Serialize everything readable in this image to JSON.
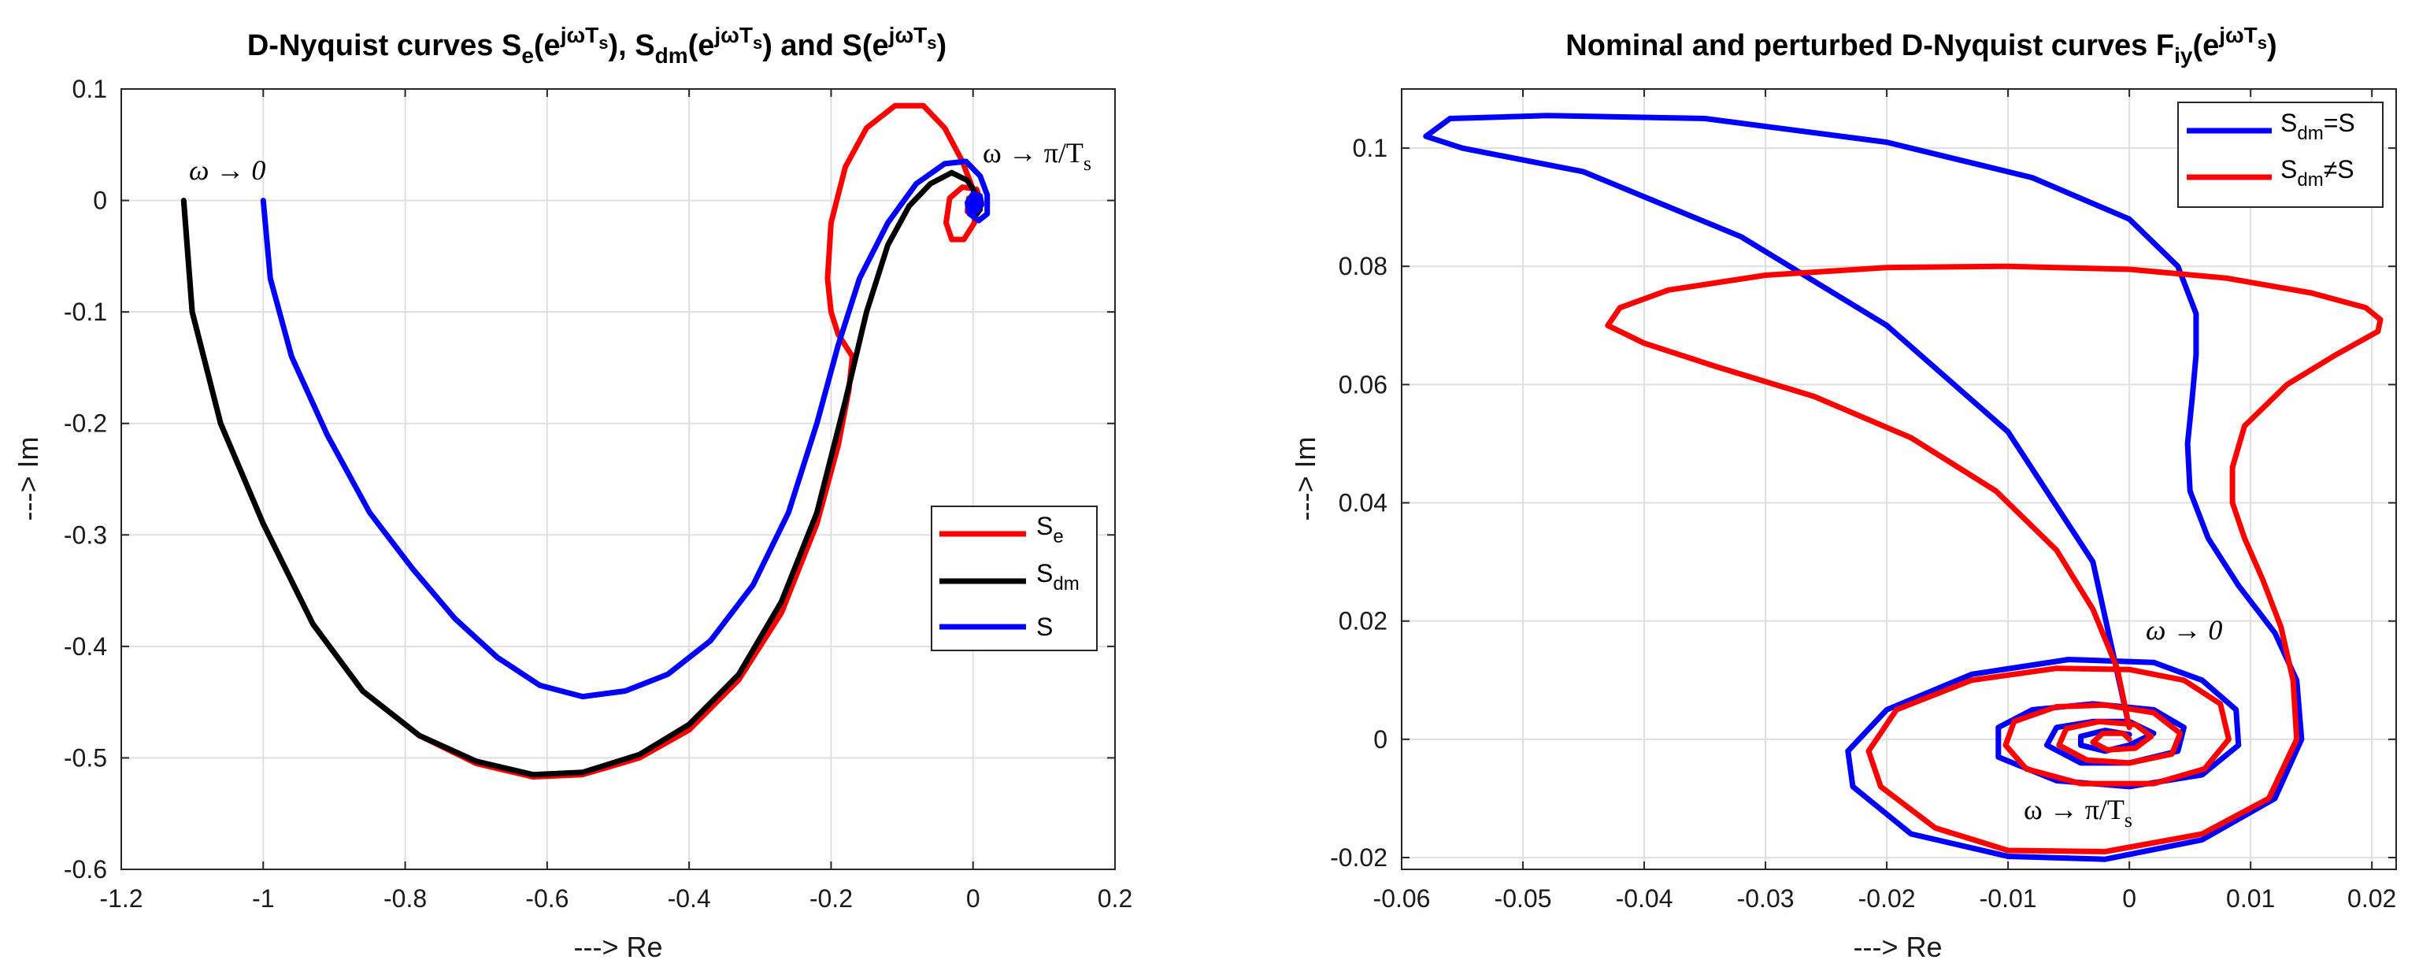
{
  "chart_data": [
    {
      "type": "line",
      "title": {
        "a": "D-Nyquist curves S",
        "s1": "e",
        "b": "(e",
        "sup": "jωT",
        "s2": "s",
        "c": "), S",
        "s3": "dm",
        "d": "(e",
        "e": ") and S(e",
        "f": ")"
      },
      "xlabel": "---> Re",
      "ylabel": "---> Im",
      "xlim": [
        -1.2,
        0.2
      ],
      "ylim": [
        -0.6,
        0.1
      ],
      "xticks": [
        "-1.2",
        "-1",
        "-0.8",
        "-0.6",
        "-0.4",
        "-0.2",
        "0",
        "0.2"
      ],
      "yticks": [
        "-0.6",
        "-0.5",
        "-0.4",
        "-0.3",
        "-0.2",
        "-0.1",
        "0",
        "0.1"
      ],
      "legend_position": "right-middle",
      "grid": true,
      "annotations": [
        {
          "text": "ω → 0"
        },
        {
          "text": "ω → π/T",
          "sub": "s"
        }
      ],
      "series": [
        {
          "name": "S",
          "sub": "e",
          "color": "#ff0000",
          "points": [
            [
              -1.112,
              0
            ],
            [
              -1.1,
              -0.1
            ],
            [
              -1.06,
              -0.2
            ],
            [
              -1.0,
              -0.29
            ],
            [
              -0.93,
              -0.38
            ],
            [
              -0.86,
              -0.44
            ],
            [
              -0.78,
              -0.48
            ],
            [
              -0.7,
              -0.505
            ],
            [
              -0.62,
              -0.517
            ],
            [
              -0.55,
              -0.515
            ],
            [
              -0.47,
              -0.5
            ],
            [
              -0.4,
              -0.475
            ],
            [
              -0.33,
              -0.43
            ],
            [
              -0.27,
              -0.37
            ],
            [
              -0.22,
              -0.29
            ],
            [
              -0.19,
              -0.22
            ],
            [
              -0.175,
              -0.17
            ],
            [
              -0.17,
              -0.14
            ],
            [
              -0.19,
              -0.12
            ],
            [
              -0.2,
              -0.1
            ],
            [
              -0.205,
              -0.07
            ],
            [
              -0.2,
              -0.02
            ],
            [
              -0.18,
              0.03
            ],
            [
              -0.15,
              0.065
            ],
            [
              -0.11,
              0.085
            ],
            [
              -0.07,
              0.085
            ],
            [
              -0.04,
              0.065
            ],
            [
              -0.015,
              0.035
            ],
            [
              0.003,
              0.005
            ],
            [
              0.002,
              -0.02
            ],
            [
              -0.013,
              -0.035
            ],
            [
              -0.03,
              -0.035
            ],
            [
              -0.038,
              -0.02
            ],
            [
              -0.033,
              0.002
            ],
            [
              -0.015,
              0.012
            ],
            [
              0.005,
              0.01
            ],
            [
              0.012,
              -0.002
            ],
            [
              0.004,
              -0.012
            ],
            [
              -0.008,
              -0.01
            ],
            [
              -0.006,
              0.002
            ],
            [
              0.004,
              0.004
            ]
          ]
        },
        {
          "name": "S",
          "sub": "dm",
          "color": "#000000",
          "points": [
            [
              -1.112,
              0
            ],
            [
              -1.1,
              -0.1
            ],
            [
              -1.06,
              -0.2
            ],
            [
              -1.0,
              -0.29
            ],
            [
              -0.93,
              -0.38
            ],
            [
              -0.86,
              -0.44
            ],
            [
              -0.78,
              -0.48
            ],
            [
              -0.7,
              -0.503
            ],
            [
              -0.62,
              -0.515
            ],
            [
              -0.55,
              -0.513
            ],
            [
              -0.47,
              -0.497
            ],
            [
              -0.4,
              -0.47
            ],
            [
              -0.33,
              -0.425
            ],
            [
              -0.27,
              -0.36
            ],
            [
              -0.22,
              -0.28
            ],
            [
              -0.18,
              -0.18
            ],
            [
              -0.15,
              -0.1
            ],
            [
              -0.12,
              -0.04
            ],
            [
              -0.09,
              -0.005
            ],
            [
              -0.06,
              0.015
            ],
            [
              -0.03,
              0.025
            ],
            [
              -0.008,
              0.018
            ],
            [
              0.005,
              0.005
            ],
            [
              0.01,
              -0.008
            ],
            [
              0.002,
              -0.015
            ],
            [
              -0.006,
              -0.008
            ],
            [
              -0.002,
              0.002
            ],
            [
              0.003,
              0.0
            ]
          ]
        },
        {
          "name": "S",
          "sub": "",
          "color": "#0000ff",
          "points": [
            [
              -1.0,
              0
            ],
            [
              -0.99,
              -0.07
            ],
            [
              -0.96,
              -0.14
            ],
            [
              -0.91,
              -0.21
            ],
            [
              -0.85,
              -0.28
            ],
            [
              -0.79,
              -0.33
            ],
            [
              -0.73,
              -0.375
            ],
            [
              -0.67,
              -0.41
            ],
            [
              -0.61,
              -0.435
            ],
            [
              -0.55,
              -0.445
            ],
            [
              -0.49,
              -0.44
            ],
            [
              -0.43,
              -0.425
            ],
            [
              -0.37,
              -0.395
            ],
            [
              -0.31,
              -0.345
            ],
            [
              -0.26,
              -0.28
            ],
            [
              -0.22,
              -0.2
            ],
            [
              -0.19,
              -0.13
            ],
            [
              -0.16,
              -0.07
            ],
            [
              -0.12,
              -0.02
            ],
            [
              -0.08,
              0.015
            ],
            [
              -0.04,
              0.033
            ],
            [
              -0.01,
              0.035
            ],
            [
              0.01,
              0.022
            ],
            [
              0.02,
              0.005
            ],
            [
              0.02,
              -0.012
            ],
            [
              0.008,
              -0.018
            ],
            [
              -0.005,
              -0.012
            ],
            [
              -0.008,
              -0.002
            ],
            [
              0.0,
              0.006
            ],
            [
              0.01,
              0.004
            ],
            [
              0.012,
              -0.004
            ],
            [
              0.004,
              -0.01
            ],
            [
              -0.004,
              -0.006
            ],
            [
              -0.002,
              0.002
            ],
            [
              0.006,
              0.002
            ],
            [
              0.008,
              -0.004
            ],
            [
              0.002,
              -0.006
            ],
            [
              0.0,
              -0.002
            ],
            [
              0.004,
              0.0
            ]
          ]
        }
      ]
    },
    {
      "type": "line",
      "title": {
        "a": "Nominal and perturbed D-Nyquist curves F",
        "s1": "iy",
        "b": "(e",
        "sup": "jωT",
        "s2": "s",
        "c": ")"
      },
      "xlabel": "---> Re",
      "ylabel": "---> Im",
      "xlim": [
        -0.06,
        0.022
      ],
      "ylim": [
        -0.022,
        0.11
      ],
      "xticks": [
        "-0.06",
        "-0.05",
        "-0.04",
        "-0.03",
        "-0.02",
        "-0.01",
        "0",
        "0.01",
        "0.02"
      ],
      "yticks": [
        "-0.02",
        "0",
        "0.02",
        "0.04",
        "0.06",
        "0.08",
        "0.1"
      ],
      "legend_position": "top-right",
      "grid": true,
      "annotations": [
        {
          "text": "ω → 0"
        },
        {
          "text": "ω → π/T",
          "sub": "s"
        }
      ],
      "series": [
        {
          "name": "S",
          "sub": "dm",
          "suffix": "=S",
          "color": "#0000ff",
          "points": [
            [
              0,
              0.002
            ],
            [
              -0.003,
              0.03
            ],
            [
              -0.01,
              0.052
            ],
            [
              -0.02,
              0.07
            ],
            [
              -0.032,
              0.085
            ],
            [
              -0.045,
              0.096
            ],
            [
              -0.055,
              0.1
            ],
            [
              -0.058,
              0.102
            ],
            [
              -0.056,
              0.105
            ],
            [
              -0.048,
              0.1055
            ],
            [
              -0.035,
              0.105
            ],
            [
              -0.02,
              0.101
            ],
            [
              -0.008,
              0.095
            ],
            [
              0.0,
              0.088
            ],
            [
              0.004,
              0.08
            ],
            [
              0.0055,
              0.072
            ],
            [
              0.0055,
              0.065
            ],
            [
              0.0052,
              0.058
            ],
            [
              0.0048,
              0.05
            ],
            [
              0.005,
              0.042
            ],
            [
              0.0065,
              0.034
            ],
            [
              0.009,
              0.026
            ],
            [
              0.012,
              0.018
            ],
            [
              0.0138,
              0.01
            ],
            [
              0.0142,
              0.0
            ],
            [
              0.012,
              -0.01
            ],
            [
              0.006,
              -0.017
            ],
            [
              -0.002,
              -0.0203
            ],
            [
              -0.01,
              -0.0198
            ],
            [
              -0.018,
              -0.016
            ],
            [
              -0.0228,
              -0.008
            ],
            [
              -0.0232,
              -0.002
            ],
            [
              -0.02,
              0.005
            ],
            [
              -0.013,
              0.011
            ],
            [
              -0.005,
              0.0135
            ],
            [
              0.002,
              0.013
            ],
            [
              0.006,
              0.01
            ],
            [
              0.0088,
              0.005
            ],
            [
              0.009,
              -0.001
            ],
            [
              0.006,
              -0.006
            ],
            [
              0.0,
              -0.008
            ],
            [
              -0.006,
              -0.007
            ],
            [
              -0.0108,
              -0.003
            ],
            [
              -0.0108,
              0.002
            ],
            [
              -0.008,
              0.005
            ],
            [
              -0.003,
              0.006
            ],
            [
              0.002,
              0.005
            ],
            [
              0.0045,
              0.002
            ],
            [
              0.004,
              -0.002
            ],
            [
              0.0,
              -0.004
            ],
            [
              -0.004,
              -0.004
            ],
            [
              -0.0068,
              -0.001
            ],
            [
              -0.006,
              0.002
            ],
            [
              -0.003,
              0.003
            ],
            [
              0.0,
              0.003
            ],
            [
              0.002,
              0.001
            ],
            [
              0.0,
              -0.001
            ],
            [
              -0.002,
              -0.002
            ],
            [
              -0.004,
              -0.001
            ],
            [
              -0.004,
              0.0005
            ],
            [
              -0.002,
              0.0015
            ],
            [
              0.0,
              0.0008
            ]
          ]
        },
        {
          "name": "S",
          "sub": "dm",
          "suffix": "≠S",
          "color": "#ff0000",
          "points": [
            [
              0,
              0.002
            ],
            [
              -0.001,
              0.012
            ],
            [
              -0.003,
              0.022
            ],
            [
              -0.006,
              0.032
            ],
            [
              -0.011,
              0.042
            ],
            [
              -0.018,
              0.051
            ],
            [
              -0.026,
              0.058
            ],
            [
              -0.034,
              0.063
            ],
            [
              -0.04,
              0.067
            ],
            [
              -0.043,
              0.07
            ],
            [
              -0.042,
              0.073
            ],
            [
              -0.038,
              0.076
            ],
            [
              -0.03,
              0.0785
            ],
            [
              -0.02,
              0.0798
            ],
            [
              -0.01,
              0.08
            ],
            [
              0.0,
              0.0795
            ],
            [
              0.008,
              0.078
            ],
            [
              0.015,
              0.0755
            ],
            [
              0.0195,
              0.073
            ],
            [
              0.0207,
              0.071
            ],
            [
              0.0205,
              0.069
            ],
            [
              0.017,
              0.065
            ],
            [
              0.013,
              0.06
            ],
            [
              0.0095,
              0.053
            ],
            [
              0.0085,
              0.046
            ],
            [
              0.0085,
              0.04
            ],
            [
              0.0095,
              0.034
            ],
            [
              0.011,
              0.027
            ],
            [
              0.0125,
              0.019
            ],
            [
              0.0135,
              0.01
            ],
            [
              0.0138,
              0.0
            ],
            [
              0.0115,
              -0.01
            ],
            [
              0.006,
              -0.016
            ],
            [
              -0.002,
              -0.019
            ],
            [
              -0.01,
              -0.0188
            ],
            [
              -0.016,
              -0.015
            ],
            [
              -0.0205,
              -0.008
            ],
            [
              -0.0215,
              -0.002
            ],
            [
              -0.0192,
              0.005
            ],
            [
              -0.013,
              0.01
            ],
            [
              -0.006,
              0.012
            ],
            [
              0.0,
              0.0118
            ],
            [
              0.0045,
              0.01
            ],
            [
              0.0075,
              0.006
            ],
            [
              0.0082,
              0.0
            ],
            [
              0.0062,
              -0.005
            ],
            [
              0.002,
              -0.0075
            ],
            [
              -0.004,
              -0.0075
            ],
            [
              -0.0085,
              -0.005
            ],
            [
              -0.0102,
              -0.001
            ],
            [
              -0.0095,
              0.003
            ],
            [
              -0.006,
              0.0055
            ],
            [
              -0.002,
              0.0058
            ],
            [
              0.002,
              0.0045
            ],
            [
              0.0042,
              0.001
            ],
            [
              0.0035,
              -0.0025
            ],
            [
              0.0,
              -0.004
            ],
            [
              -0.0035,
              -0.0035
            ],
            [
              -0.0058,
              -0.001
            ],
            [
              -0.0052,
              0.0018
            ],
            [
              -0.0025,
              0.003
            ],
            [
              0.0005,
              0.0025
            ],
            [
              0.0018,
              0.0005
            ],
            [
              0.0005,
              -0.0015
            ],
            [
              -0.0018,
              -0.0018
            ],
            [
              -0.003,
              -0.0005
            ],
            [
              -0.0022,
              0.001
            ],
            [
              -0.0005,
              0.001
            ],
            [
              0.0,
              0.0
            ]
          ]
        }
      ]
    }
  ]
}
